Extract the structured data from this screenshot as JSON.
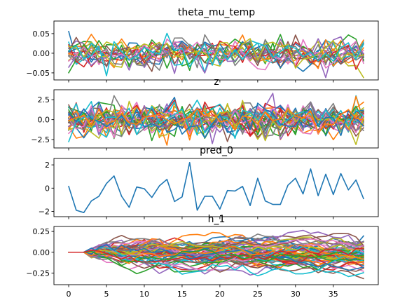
{
  "palette": [
    "#1f77b4",
    "#ff7f0e",
    "#2ca02c",
    "#d62728",
    "#9467bd",
    "#8c564b",
    "#e377c2",
    "#7f7f7f",
    "#bcbd22",
    "#17becf"
  ],
  "chart_data": [
    {
      "type": "line",
      "title": "theta_mu_temp",
      "x_range": [
        0,
        39
      ],
      "ylim": [
        -0.068,
        0.082
      ],
      "yticks": [
        -0.05,
        0.0,
        0.05
      ],
      "yticklabels": [
        "−0.05",
        "0.00",
        "0.05"
      ],
      "xticks": [
        0,
        5,
        10,
        15,
        20,
        25,
        30,
        35
      ],
      "xticklabels": [],
      "grid": false,
      "legend": "none",
      "multi_series": {
        "count": 20,
        "distribution": "normal",
        "std": 0.02,
        "clip": [
          -0.062,
          0.075
        ]
      },
      "series": []
    },
    {
      "type": "line",
      "title": "z",
      "x_range": [
        0,
        39
      ],
      "ylim": [
        -3.55,
        3.75
      ],
      "yticks": [
        -2.5,
        0.0,
        2.5
      ],
      "yticklabels": [
        "−2.5",
        "0.0",
        "2.5"
      ],
      "xticks": [
        0,
        5,
        10,
        15,
        20,
        25,
        30,
        35
      ],
      "xticklabels": [],
      "grid": false,
      "legend": "none",
      "multi_series": {
        "count": 32,
        "distribution": "normal",
        "std": 1.0,
        "clip": [
          -3.2,
          3.3
        ]
      },
      "series": []
    },
    {
      "type": "line",
      "title": "pred_0",
      "x_range": [
        0,
        39
      ],
      "ylim": [
        -2.45,
        2.55
      ],
      "yticks": [
        -2,
        0,
        2
      ],
      "yticklabels": [
        "−2",
        "0",
        "2"
      ],
      "xticks": [
        0,
        5,
        10,
        15,
        20,
        25,
        30,
        35
      ],
      "xticklabels": [],
      "grid": false,
      "legend": "none",
      "series": [
        {
          "color": "#1f77b4",
          "x": [
            0,
            1,
            2,
            3,
            4,
            5,
            6,
            7,
            8,
            9,
            10,
            11,
            12,
            13,
            14,
            15,
            16,
            17,
            18,
            19,
            20,
            21,
            22,
            23,
            24,
            25,
            26,
            27,
            28,
            29,
            30,
            31,
            32,
            33,
            34,
            35,
            36,
            37,
            38,
            39
          ],
          "values": [
            0.15,
            -1.9,
            -2.1,
            -1.1,
            -0.7,
            0.4,
            1.05,
            -0.7,
            -1.65,
            0.1,
            -0.05,
            -0.8,
            0.2,
            0.75,
            -1.15,
            -0.75,
            2.2,
            -1.9,
            -0.7,
            -0.7,
            -1.8,
            -0.2,
            -0.25,
            0.15,
            -1.5,
            0.85,
            -1.1,
            -1.4,
            -1.4,
            0.25,
            0.85,
            -0.5,
            1.65,
            -0.65,
            1.2,
            -0.55,
            1.25,
            -0.15,
            0.7,
            -0.9
          ]
        }
      ]
    },
    {
      "type": "line",
      "title": "h_1",
      "x_range": [
        0,
        39
      ],
      "ylim": [
        -0.39,
        0.31
      ],
      "yticks": [
        -0.25,
        0.0,
        0.25
      ],
      "yticklabels": [
        "−0.25",
        "0.00",
        "0.25"
      ],
      "xticks": [
        0,
        5,
        10,
        15,
        20,
        25,
        30,
        35
      ],
      "xticklabels": [
        "0",
        "5",
        "10",
        "15",
        "20",
        "25",
        "30",
        "35"
      ],
      "grid": false,
      "legend": "none",
      "multi_series": {
        "count": 64,
        "distribution": "random-walk",
        "start": 0.0,
        "flat_until": 2,
        "step_std": 0.035,
        "decay": 0.93,
        "clip": [
          -0.36,
          0.28
        ]
      },
      "series": []
    }
  ]
}
